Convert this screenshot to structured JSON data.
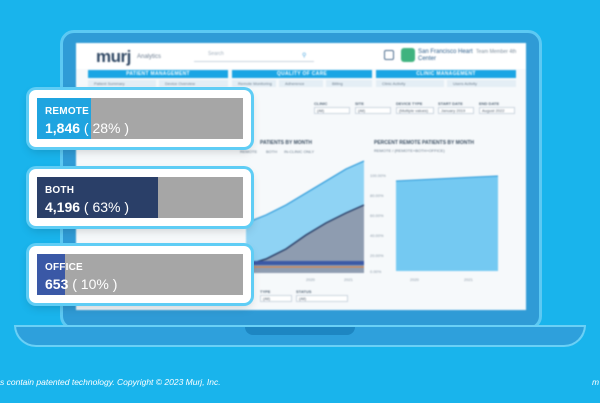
{
  "app": {
    "brand": "murj",
    "brand_sub": "Analytics",
    "search_placeholder": "Search",
    "hospital_name": "San Francisco Heart Center",
    "user": "Team Member 4th"
  },
  "sections": [
    "PATIENT MANAGEMENT",
    "QUALITY OF CARE",
    "CLINIC MANAGEMENT"
  ],
  "subtabs": [
    "Patient Summary",
    "Device Overview",
    "Remote Monitoring",
    "Adherence",
    "Billing",
    "Clinic Activity",
    "Users Activity"
  ],
  "filters": [
    {
      "label": "CLINIC",
      "value": "(All)"
    },
    {
      "label": "SITE",
      "value": "(All)"
    },
    {
      "label": "DEVICE TYPE",
      "value": "(Multiple values)"
    },
    {
      "label": "START DATE",
      "value": "January 2019"
    },
    {
      "label": "END DATE",
      "value": "August 2022"
    }
  ],
  "charts": {
    "left": {
      "title": "PATIENTS BY MONTH",
      "legend": [
        "REMOTE",
        "BOTH",
        "IN-CLINIC ONLY"
      ],
      "x_ticks": [
        "2020",
        "2021"
      ]
    },
    "right": {
      "title": "PERCENT REMOTE PATIENTS BY MONTH",
      "legend": "REMOTE / (REMOTE+BOTH+OFFICE)",
      "y_ticks": [
        "100.00%",
        "80.00%",
        "60.00%",
        "40.00%",
        "20.00%",
        "0.00%"
      ],
      "x_ticks": [
        "2020",
        "2021"
      ]
    }
  },
  "bottom_filters": [
    {
      "label": "TYPE",
      "value": "(All)"
    },
    {
      "label": "STATUS",
      "value": "(All)"
    }
  ],
  "stats": [
    {
      "label": "REMOTE",
      "count": "1,846",
      "percent_text": " ( 28% )",
      "fraction": 0.28,
      "color": "#1fa4e0"
    },
    {
      "label": "BOTH",
      "count": "4,196",
      "percent_text": " ( 63% )",
      "fraction": 0.63,
      "color": "#2a3f68"
    },
    {
      "label": "OFFICE",
      "count": "653",
      "percent_text": " ( 10% )",
      "fraction": 0.1,
      "color": "#3a58a6"
    }
  ],
  "footer": {
    "text": "s contain patented technology. Copyright © 2023 Murj, Inc.",
    "right": "m"
  }
}
